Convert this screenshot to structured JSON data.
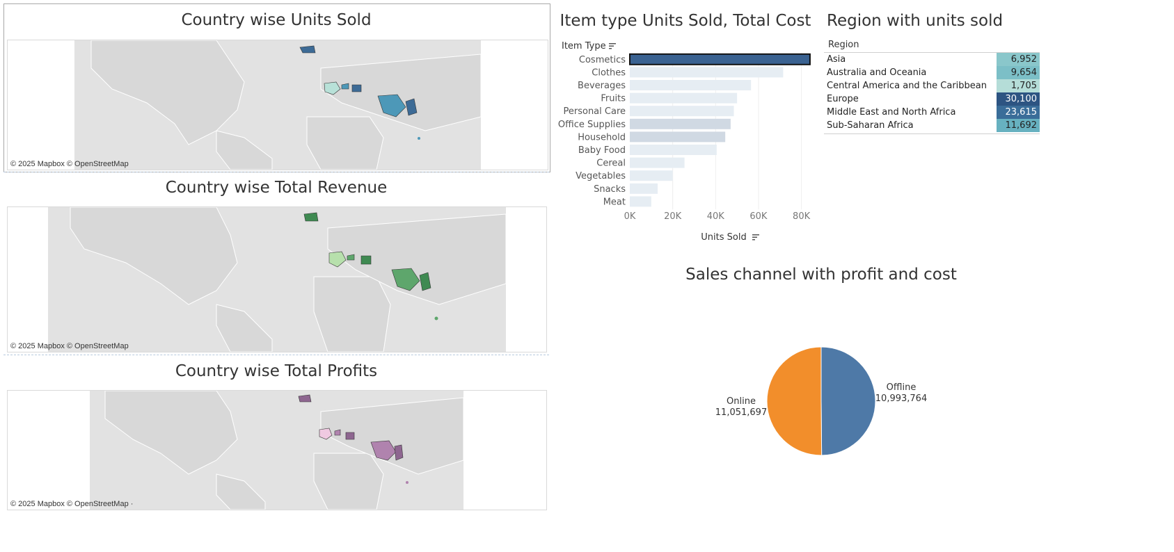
{
  "maps": [
    {
      "title": "Country wise Units Sold",
      "attribution": "© 2025 Mapbox © OpenStreetMap"
    },
    {
      "title": "Country wise Total Revenue",
      "attribution": "© 2025 Mapbox © OpenStreetMap"
    },
    {
      "title": "Country wise Total Profits",
      "attribution": "© 2025 Mapbox © OpenStreetMap ·"
    }
  ],
  "colors": {
    "units_dark": "#3d6b96",
    "units_mid": "#4d98b8",
    "units_light": "#b8e1d8",
    "revenue_dark": "#3f8a52",
    "revenue_mid": "#5ea66c",
    "revenue_light": "#b7e0ac",
    "profit_dark": "#8e6690",
    "profit_mid": "#b083ae",
    "profit_light": "#efc9e1",
    "bar_selected": "#3a6291",
    "bar_light": "#e6edf3",
    "bar_mid": "#d0d9e3",
    "pie_offline": "#4e79a7",
    "pie_online": "#f28e2b"
  },
  "chart_data": [
    {
      "type": "bar",
      "title": "Item type Units Sold, Total Cost",
      "ylabel": "Item Type",
      "xlabel": "Units Sold",
      "categories": [
        "Cosmetics",
        "Clothes",
        "Beverages",
        "Fruits",
        "Personal Care",
        "Office Supplies",
        "Household",
        "Baby Food",
        "Cereal",
        "Vegetables",
        "Snacks",
        "Meat"
      ],
      "values": [
        84000,
        71500,
        56500,
        50000,
        48500,
        47000,
        44500,
        40500,
        25500,
        20000,
        13000,
        10000
      ],
      "cost_shade": [
        "selected",
        "light",
        "light",
        "light",
        "light",
        "mid",
        "mid",
        "light",
        "light",
        "light",
        "light",
        "light"
      ],
      "xticks": [
        "0K",
        "20K",
        "40K",
        "60K",
        "80K"
      ],
      "xtick_values": [
        0,
        20000,
        40000,
        60000,
        80000
      ],
      "xlim": [
        0,
        85000
      ]
    },
    {
      "type": "table",
      "title": "Region with units sold",
      "header": "Region",
      "rows": [
        {
          "region": "Asia",
          "value": "6,952",
          "color": "#8ac7cb",
          "text": "#222"
        },
        {
          "region": "Australia and Oceania",
          "value": "9,654",
          "color": "#7cbfc7",
          "text": "#222"
        },
        {
          "region": "Central America and the Caribbean",
          "value": "1,705",
          "color": "#b5ddd8",
          "text": "#222"
        },
        {
          "region": "Europe",
          "value": "30,100",
          "color": "#2d5482",
          "text": "#ffffff"
        },
        {
          "region": "Middle East and North Africa",
          "value": "23,615",
          "color": "#3a6d99",
          "text": "#ffffff"
        },
        {
          "region": "Sub-Saharan Africa",
          "value": "11,692",
          "color": "#67b1c0",
          "text": "#222"
        }
      ]
    },
    {
      "type": "pie",
      "title": "Sales channel with profit and cost",
      "slices": [
        {
          "name": "Offline",
          "value": 10993764,
          "value_label": "10,993,764",
          "color": "#4e79a7"
        },
        {
          "name": "Online",
          "value": 11051697,
          "value_label": "11,051,697",
          "color": "#f28e2b"
        }
      ]
    }
  ]
}
